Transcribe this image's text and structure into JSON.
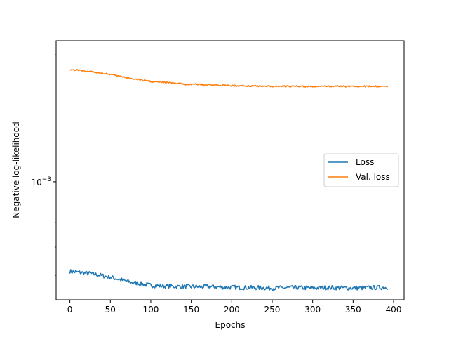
{
  "chart_data": {
    "type": "line",
    "xlabel": "Epochs",
    "ylabel": "Negative log-likelihood",
    "x_scale": "linear",
    "y_scale": "log",
    "xlim": [
      -17,
      413
    ],
    "ylim": [
      0.000525,
      0.00216
    ],
    "x_ticks": [
      0,
      50,
      100,
      150,
      200,
      250,
      300,
      350,
      400
    ],
    "x_tick_labels": [
      "0",
      "50",
      "100",
      "150",
      "200",
      "250",
      "300",
      "350",
      "400"
    ],
    "y_major_ticks": [
      0.001
    ],
    "y_major_tick_labels": [
      {
        "base": "10",
        "exp": "−3"
      }
    ],
    "y_minor_ticks": [
      0.0006,
      0.0007,
      0.0008,
      0.0009,
      0.002
    ],
    "grid": false,
    "legend": {
      "position": "center-right"
    },
    "series": [
      {
        "name": "Loss",
        "color": "#1f77b4",
        "x": [
          0,
          25,
          50,
          75,
          100,
          125,
          150,
          175,
          200,
          225,
          250,
          275,
          300,
          325,
          350,
          375,
          393
        ],
        "values": [
          0.000613,
          0.000606,
          0.000594,
          0.000578,
          0.000568,
          0.000565,
          0.000564,
          0.000564,
          0.000562,
          0.000561,
          0.00056,
          0.000561,
          0.00056,
          0.000561,
          0.00056,
          0.000561,
          0.000562
        ],
        "noise": 0.012
      },
      {
        "name": "Val. loss",
        "color": "#ff7f0e",
        "x": [
          0,
          10,
          25,
          40,
          55,
          70,
          90,
          105,
          120,
          140,
          160,
          180,
          200,
          225,
          250,
          275,
          300,
          325,
          350,
          375,
          393
        ],
        "values": [
          0.001845,
          0.00184,
          0.001825,
          0.00181,
          0.00179,
          0.001765,
          0.00174,
          0.001725,
          0.00172,
          0.001705,
          0.001702,
          0.001695,
          0.00169,
          0.001688,
          0.001685,
          0.001684,
          0.001682,
          0.001684,
          0.001683,
          0.001684,
          0.001684
        ],
        "noise": 0.004
      }
    ]
  }
}
